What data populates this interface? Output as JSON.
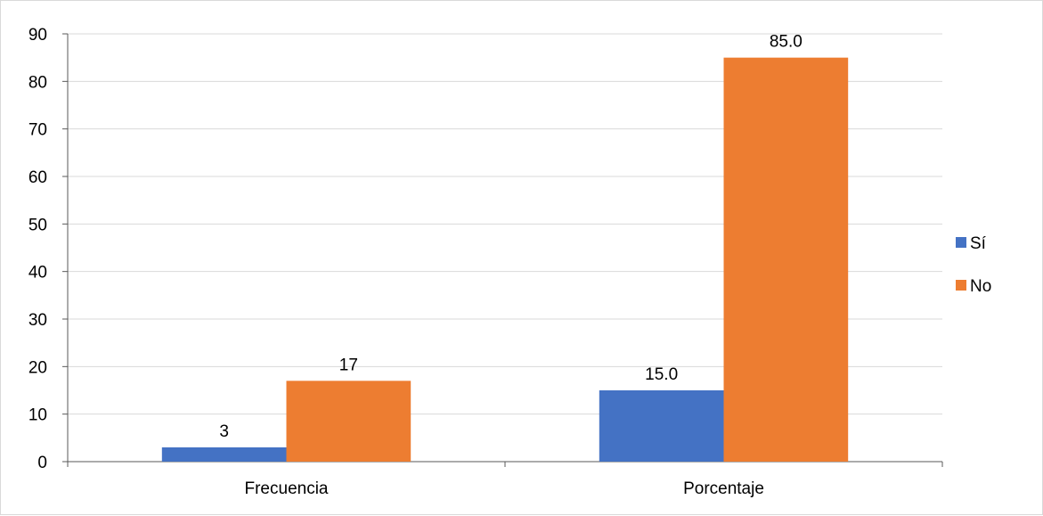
{
  "chart_data": {
    "type": "bar",
    "categories": [
      "Frecuencia",
      "Porcentaje"
    ],
    "series": [
      {
        "name": "Sí",
        "values": [
          3,
          15.0
        ],
        "labels": [
          "3",
          "15.0"
        ],
        "color": "#4472C4"
      },
      {
        "name": "No",
        "values": [
          17,
          85.0
        ],
        "labels": [
          "17",
          "85.0"
        ],
        "color": "#ED7D31"
      }
    ],
    "title": "",
    "xlabel": "",
    "ylabel": "",
    "ylim": [
      0,
      90
    ],
    "yticks": [
      "0",
      "10",
      "20",
      "30",
      "40",
      "50",
      "60",
      "70",
      "80",
      "90"
    ],
    "grid": true,
    "legend": "right"
  }
}
